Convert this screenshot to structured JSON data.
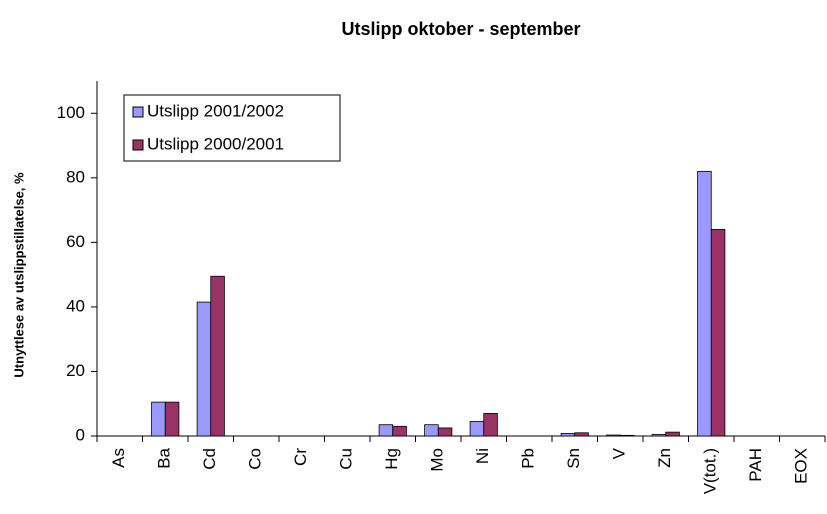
{
  "chart_data": {
    "type": "bar",
    "title": "Utslipp oktober - september",
    "y_label": "Utnyttlese av utslippstillatelse, %",
    "categories": [
      "As",
      "Ba",
      "Cd",
      "Co",
      "Cr",
      "Cu",
      "Hg",
      "Mo",
      "Ni",
      "Pb",
      "Sn",
      "V",
      "Zn",
      "V(tot.)",
      "PAH",
      "EOX"
    ],
    "series": [
      {
        "name": "Utslipp 2001/2002",
        "color": "#9999ff",
        "values": [
          0,
          10.5,
          41.5,
          0,
          0,
          0,
          3.5,
          3.5,
          4.5,
          0,
          0.8,
          0.3,
          0.5,
          82,
          0,
          0
        ]
      },
      {
        "name": "Utslipp 2000/2001",
        "color": "#993366",
        "values": [
          0,
          10.5,
          49.5,
          0,
          0,
          0,
          3,
          2.5,
          7,
          0,
          1,
          0.2,
          1.2,
          64,
          0,
          0
        ]
      }
    ],
    "ylim": [
      0,
      110
    ],
    "yticks": [
      0,
      20,
      40,
      60,
      80,
      100
    ]
  }
}
